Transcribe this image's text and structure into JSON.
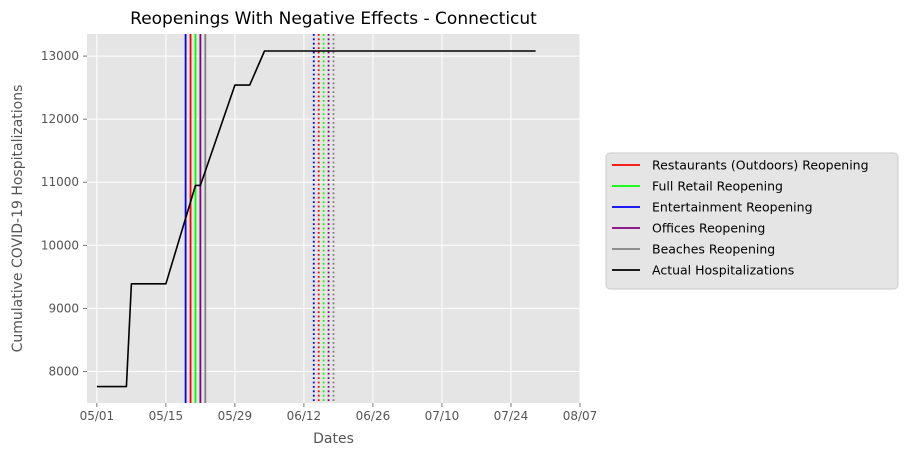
{
  "chart_data": {
    "type": "line",
    "title": "Reopenings With Negative Effects - Connecticut",
    "xlabel": "Dates",
    "ylabel": "Cumulative COVID-19 Hospitalizations",
    "x_axis": {
      "type": "date",
      "range": [
        "2020-04-29",
        "2020-08-07"
      ],
      "ticks": [
        {
          "date": "2020-05-01",
          "label": "05/01"
        },
        {
          "date": "2020-05-15",
          "label": "05/15"
        },
        {
          "date": "2020-05-29",
          "label": "05/29"
        },
        {
          "date": "2020-06-12",
          "label": "06/12"
        },
        {
          "date": "2020-06-26",
          "label": "06/26"
        },
        {
          "date": "2020-07-10",
          "label": "07/10"
        },
        {
          "date": "2020-07-24",
          "label": "07/24"
        },
        {
          "date": "2020-08-07",
          "label": "08/07"
        }
      ]
    },
    "y_axis": {
      "range": [
        7500,
        13350
      ],
      "ticks": [
        8000,
        9000,
        10000,
        11000,
        12000,
        13000
      ]
    },
    "grid": true,
    "legend_position": "right",
    "series": [
      {
        "name": "Actual Hospitalizations",
        "color": "#000000",
        "points": [
          {
            "x": "2020-05-01",
            "y": 7760
          },
          {
            "x": "2020-05-07",
            "y": 7760
          },
          {
            "x": "2020-05-08",
            "y": 9390
          },
          {
            "x": "2020-05-15",
            "y": 9390
          },
          {
            "x": "2020-05-21",
            "y": 10950
          },
          {
            "x": "2020-05-22",
            "y": 10950
          },
          {
            "x": "2020-05-29",
            "y": 12540
          },
          {
            "x": "2020-06-01",
            "y": 12540
          },
          {
            "x": "2020-06-04",
            "y": 13080
          },
          {
            "x": "2020-07-29",
            "y": 13080
          }
        ]
      }
    ],
    "reopenings": [
      {
        "name": "Restaurants (Outdoors) Reopening",
        "color": "#ff0000",
        "actual": "2020-05-20",
        "projected": "2020-06-15"
      },
      {
        "name": "Full Retail Reopening",
        "color": "#00ff00",
        "actual": "2020-05-21",
        "projected": "2020-06-16"
      },
      {
        "name": "Entertainment Reopening",
        "color": "#0000ff",
        "actual": "2020-05-19",
        "projected": "2020-06-14"
      },
      {
        "name": "Offices Reopening",
        "color": "#800080",
        "actual": "2020-05-22",
        "projected": "2020-06-17"
      },
      {
        "name": "Beaches Reopening",
        "color": "#808080",
        "actual": "2020-05-23",
        "projected": "2020-06-18"
      }
    ],
    "legend": [
      {
        "label": "Restaurants (Outdoors) Reopening",
        "color": "#ff0000"
      },
      {
        "label": "Full Retail Reopening",
        "color": "#00ff00"
      },
      {
        "label": "Entertainment Reopening",
        "color": "#0000ff"
      },
      {
        "label": "Offices Reopening",
        "color": "#800080"
      },
      {
        "label": "Beaches Reopening",
        "color": "#808080"
      },
      {
        "label": "Actual Hospitalizations",
        "color": "#000000"
      }
    ]
  }
}
